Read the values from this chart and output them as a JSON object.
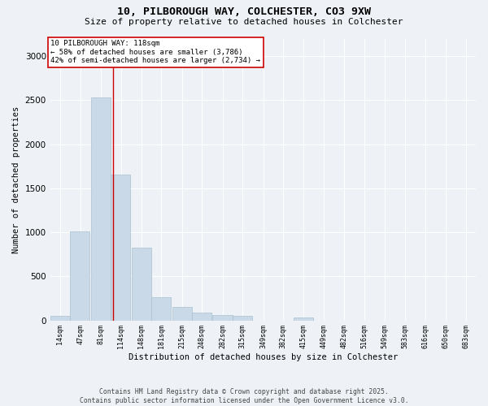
{
  "title_line1": "10, PILBOROUGH WAY, COLCHESTER, CO3 9XW",
  "title_line2": "Size of property relative to detached houses in Colchester",
  "xlabel": "Distribution of detached houses by size in Colchester",
  "ylabel": "Number of detached properties",
  "bins": [
    14,
    47,
    81,
    114,
    148,
    181,
    215,
    248,
    282,
    315,
    349,
    382,
    415,
    449,
    482,
    516,
    549,
    583,
    616,
    650,
    683
  ],
  "bar_heights": [
    55,
    1010,
    2530,
    1660,
    830,
    260,
    155,
    85,
    60,
    50,
    0,
    0,
    30,
    0,
    0,
    0,
    0,
    0,
    0,
    0
  ],
  "bar_color": "#c9d9e8",
  "bar_edgecolor": "#a8c0d0",
  "bar_linewidth": 0.5,
  "vline_x": 118,
  "vline_color": "#cc0000",
  "annotation_title": "10 PILBOROUGH WAY: 118sqm",
  "annotation_line2": "← 58% of detached houses are smaller (3,786)",
  "annotation_line3": "42% of semi-detached houses are larger (2,734) →",
  "annotation_box_edgecolor": "#cc0000",
  "annotation_box_facecolor": "#ffffff",
  "ylim": [
    0,
    3200
  ],
  "yticks": [
    0,
    500,
    1000,
    1500,
    2000,
    2500,
    3000
  ],
  "background_color": "#eef2f7",
  "footer_line1": "Contains HM Land Registry data © Crown copyright and database right 2025.",
  "footer_line2": "Contains public sector information licensed under the Open Government Licence v3.0.",
  "grid_color": "#ffffff",
  "tick_labels": [
    "14sqm",
    "47sqm",
    "81sqm",
    "114sqm",
    "148sqm",
    "181sqm",
    "215sqm",
    "248sqm",
    "282sqm",
    "315sqm",
    "349sqm",
    "382sqm",
    "415sqm",
    "449sqm",
    "482sqm",
    "516sqm",
    "549sqm",
    "583sqm",
    "616sqm",
    "650sqm",
    "683sqm"
  ]
}
